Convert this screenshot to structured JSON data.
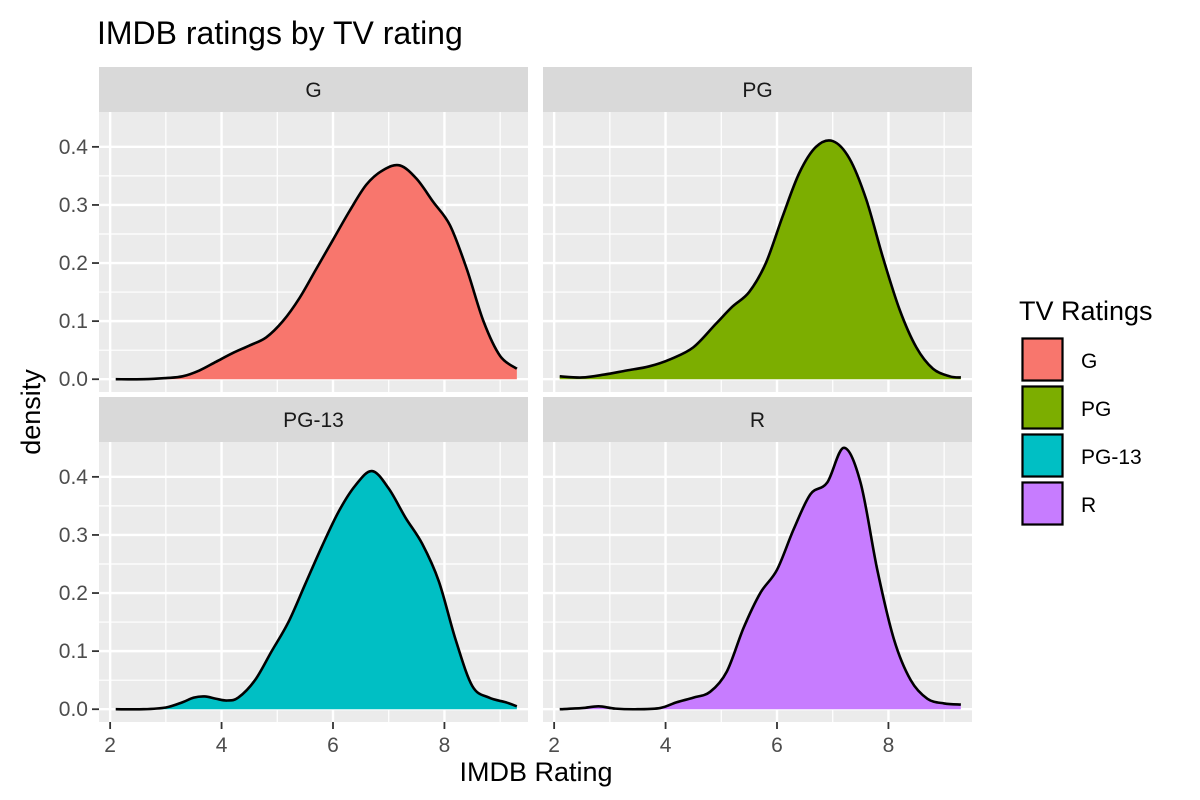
{
  "chart_data": {
    "type": "area",
    "title": "IMDB ratings by TV rating",
    "xlabel": "IMDB Rating",
    "ylabel": "density",
    "xlim": [
      1.8,
      9.5
    ],
    "ylim": [
      -0.022,
      0.46
    ],
    "x_ticks": [
      2,
      4,
      6,
      8
    ],
    "y_ticks": [
      0.0,
      0.1,
      0.2,
      0.3,
      0.4
    ],
    "y_tick_labels": [
      "0.0",
      "0.1",
      "0.2",
      "0.3",
      "0.4"
    ],
    "grid": true,
    "legend": {
      "title": "TV Ratings",
      "position": "right"
    },
    "facets": [
      {
        "name": "G",
        "color": "#F8766D",
        "x": [
          2.1,
          2.6,
          3.0,
          3.3,
          3.6,
          3.9,
          4.2,
          4.5,
          4.8,
          5.1,
          5.4,
          5.7,
          6.0,
          6.3,
          6.6,
          6.9,
          7.2,
          7.5,
          7.8,
          8.1,
          8.4,
          8.7,
          9.0,
          9.3
        ],
        "y": [
          0.0,
          0.0,
          0.002,
          0.005,
          0.015,
          0.03,
          0.045,
          0.058,
          0.072,
          0.1,
          0.14,
          0.19,
          0.24,
          0.29,
          0.335,
          0.36,
          0.368,
          0.345,
          0.305,
          0.265,
          0.19,
          0.1,
          0.04,
          0.018
        ]
      },
      {
        "name": "PG",
        "color": "#7CAE00",
        "x": [
          2.1,
          2.5,
          2.9,
          3.3,
          3.7,
          4.1,
          4.5,
          4.9,
          5.2,
          5.5,
          5.8,
          6.1,
          6.4,
          6.7,
          7.0,
          7.3,
          7.6,
          7.9,
          8.2,
          8.5,
          8.8,
          9.1,
          9.3
        ],
        "y": [
          0.005,
          0.003,
          0.008,
          0.015,
          0.022,
          0.035,
          0.055,
          0.095,
          0.125,
          0.15,
          0.2,
          0.28,
          0.355,
          0.4,
          0.41,
          0.38,
          0.31,
          0.21,
          0.12,
          0.055,
          0.018,
          0.005,
          0.003
        ]
      },
      {
        "name": "PG-13",
        "color": "#00BFC4",
        "x": [
          2.1,
          2.6,
          3.0,
          3.3,
          3.5,
          3.7,
          3.9,
          4.1,
          4.3,
          4.6,
          4.9,
          5.2,
          5.5,
          5.8,
          6.1,
          6.4,
          6.7,
          7.0,
          7.3,
          7.6,
          7.9,
          8.2,
          8.5,
          8.8,
          9.1,
          9.3
        ],
        "y": [
          0.0,
          0.0,
          0.003,
          0.012,
          0.02,
          0.022,
          0.018,
          0.015,
          0.02,
          0.05,
          0.1,
          0.15,
          0.215,
          0.28,
          0.34,
          0.385,
          0.41,
          0.38,
          0.33,
          0.285,
          0.22,
          0.12,
          0.04,
          0.02,
          0.012,
          0.005
        ]
      },
      {
        "name": "R",
        "color": "#C77CFF",
        "x": [
          2.1,
          2.5,
          2.8,
          3.1,
          3.5,
          3.9,
          4.2,
          4.5,
          4.8,
          5.1,
          5.4,
          5.7,
          6.0,
          6.3,
          6.6,
          6.9,
          7.2,
          7.5,
          7.8,
          8.1,
          8.4,
          8.7,
          9.0,
          9.3
        ],
        "y": [
          0.0,
          0.002,
          0.005,
          0.001,
          0.0,
          0.002,
          0.012,
          0.02,
          0.03,
          0.065,
          0.14,
          0.2,
          0.24,
          0.31,
          0.37,
          0.39,
          0.45,
          0.39,
          0.24,
          0.12,
          0.05,
          0.018,
          0.01,
          0.008
        ]
      }
    ]
  }
}
